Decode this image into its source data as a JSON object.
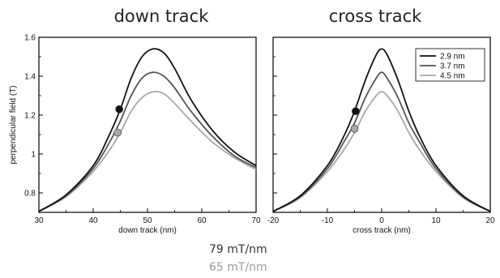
{
  "colors": {
    "dark": "#111111",
    "mid": "#555555",
    "light": "#a8a8a8"
  },
  "annotations": {
    "gradient_dark": "79 mT/nm",
    "gradient_light": "65 mT/nm"
  },
  "chart_data": [
    {
      "type": "line",
      "title": "down track",
      "xlabel": "down track (nm)",
      "ylabel": "perpendicular field (T)",
      "xlim": [
        30,
        70
      ],
      "ylim": [
        0.7,
        1.6
      ],
      "xticks": [
        30,
        40,
        50,
        60,
        70
      ],
      "yticks": [
        0.8,
        1,
        1.2,
        1.4,
        1.6
      ],
      "ytick_labels": [
        "0.8",
        "1",
        "1.2",
        "1.4",
        "1.6"
      ],
      "grid": false,
      "series": [
        {
          "name": "2.9 nm",
          "color": "#111111",
          "x": [
            30,
            35,
            40,
            43,
            45,
            47,
            49,
            51,
            53,
            55,
            58,
            62,
            66,
            70
          ],
          "y": [
            0.705,
            0.79,
            0.94,
            1.1,
            1.23,
            1.39,
            1.5,
            1.54,
            1.52,
            1.44,
            1.28,
            1.12,
            1.01,
            0.94
          ]
        },
        {
          "name": "3.7 nm",
          "color": "#555555",
          "x": [
            30,
            35,
            40,
            43,
            45,
            47,
            49,
            51,
            53,
            55,
            58,
            62,
            66,
            70
          ],
          "y": [
            0.705,
            0.785,
            0.925,
            1.06,
            1.17,
            1.3,
            1.39,
            1.42,
            1.4,
            1.34,
            1.22,
            1.09,
            0.99,
            0.93
          ]
        },
        {
          "name": "4.5 nm",
          "color": "#a8a8a8",
          "x": [
            30,
            35,
            40,
            43,
            45,
            47,
            49,
            51,
            53,
            55,
            58,
            62,
            66,
            70
          ],
          "y": [
            0.705,
            0.78,
            0.91,
            1.02,
            1.11,
            1.22,
            1.29,
            1.32,
            1.31,
            1.26,
            1.17,
            1.06,
            0.98,
            0.92
          ]
        }
      ],
      "markers": [
        {
          "x": 44.8,
          "y": 1.23,
          "color": "#111111"
        },
        {
          "x": 44.5,
          "y": 1.11,
          "color": "#a8a8a8"
        }
      ]
    },
    {
      "type": "line",
      "title": "cross track",
      "xlabel": "cross track (nm)",
      "xlim": [
        -20,
        20
      ],
      "ylim": [
        0.7,
        1.6
      ],
      "xticks": [
        -20,
        -10,
        0,
        10,
        20
      ],
      "grid": false,
      "legend": "top-right",
      "series": [
        {
          "name": "2.9 nm",
          "color": "#111111",
          "x": [
            -20,
            -15,
            -10,
            -7,
            -5,
            -3,
            -1,
            0,
            1,
            3,
            5,
            7,
            10,
            15,
            20
          ],
          "y": [
            0.705,
            0.785,
            0.94,
            1.09,
            1.22,
            1.38,
            1.51,
            1.54,
            1.51,
            1.38,
            1.22,
            1.09,
            0.94,
            0.785,
            0.705
          ]
        },
        {
          "name": "3.7 nm",
          "color": "#555555",
          "x": [
            -20,
            -15,
            -10,
            -7,
            -5,
            -3,
            -1,
            0,
            1,
            3,
            5,
            7,
            10,
            15,
            20
          ],
          "y": [
            0.705,
            0.78,
            0.925,
            1.06,
            1.16,
            1.29,
            1.39,
            1.42,
            1.39,
            1.29,
            1.16,
            1.06,
            0.925,
            0.78,
            0.705
          ]
        },
        {
          "name": "4.5 nm",
          "color": "#a8a8a8",
          "x": [
            -20,
            -15,
            -10,
            -7,
            -5,
            -3,
            -1,
            0,
            1,
            3,
            5,
            7,
            10,
            15,
            20
          ],
          "y": [
            0.705,
            0.775,
            0.91,
            1.02,
            1.11,
            1.22,
            1.3,
            1.32,
            1.3,
            1.22,
            1.11,
            1.02,
            0.91,
            0.775,
            0.705
          ]
        }
      ],
      "markers": [
        {
          "x": -4.8,
          "y": 1.22,
          "color": "#111111"
        },
        {
          "x": -5.0,
          "y": 1.13,
          "color": "#a8a8a8"
        }
      ]
    }
  ]
}
